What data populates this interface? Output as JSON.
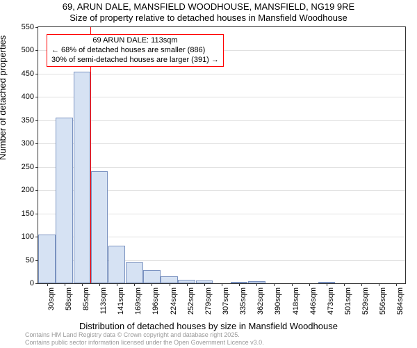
{
  "title_line1": "69, ARUN DALE, MANSFIELD WOODHOUSE, MANSFIELD, NG19 9RE",
  "title_line2": "Size of property relative to detached houses in Mansfield Woodhouse",
  "ylabel": "Number of detached properties",
  "xlabel": "Distribution of detached houses by size in Mansfield Woodhouse",
  "footnote_line1": "Contains HM Land Registry data © Crown copyright and database right 2025.",
  "footnote_line2": "Contains public sector information licensed under the Open Government Licence v3.0.",
  "chart": {
    "type": "bar",
    "ylim": [
      0,
      550
    ],
    "yticks": [
      0,
      50,
      100,
      150,
      200,
      250,
      300,
      350,
      400,
      450,
      500,
      550
    ],
    "categories": [
      "30sqm",
      "58sqm",
      "85sqm",
      "113sqm",
      "141sqm",
      "169sqm",
      "196sqm",
      "224sqm",
      "252sqm",
      "279sqm",
      "307sqm",
      "335sqm",
      "362sqm",
      "390sqm",
      "418sqm",
      "446sqm",
      "473sqm",
      "501sqm",
      "529sqm",
      "556sqm",
      "584sqm"
    ],
    "values": [
      105,
      355,
      455,
      240,
      80,
      45,
      28,
      15,
      8,
      6,
      0,
      2,
      5,
      0,
      0,
      0,
      3,
      0,
      0,
      0,
      0
    ],
    "bar_fill": "#d6e2f3",
    "bar_stroke": "#7a92c0",
    "grid_color": "#e0e0e0",
    "axis_color": "#333333",
    "marker_x_index": 3,
    "marker_color": "#ff0000",
    "callout": {
      "border_color": "#ff0000",
      "line1": "69 ARUN DALE: 113sqm",
      "line2": "← 68% of detached houses are smaller (886)",
      "line3": "30% of semi-detached houses are larger (391) →"
    }
  }
}
